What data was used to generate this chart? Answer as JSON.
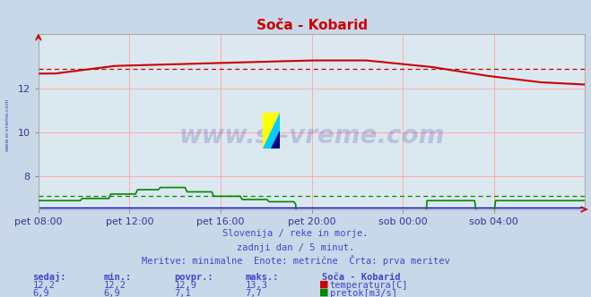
{
  "title": "Soča - Kobarid",
  "bg_color": "#c8d8e8",
  "plot_bg_color": "#dce8f0",
  "grid_color": "#ffcccc",
  "text_color": "#4444cc",
  "title_color": "#cc0000",
  "x_labels": [
    "pet 08:00",
    "pet 12:00",
    "pet 16:00",
    "pet 20:00",
    "sob 00:00",
    "sob 04:00"
  ],
  "x_ticks_norm": [
    0.0,
    0.1667,
    0.3333,
    0.5,
    0.6667,
    0.8333
  ],
  "ylim_min": 6.5,
  "ylim_max": 14.5,
  "yticks": [
    8,
    10,
    12
  ],
  "temp_color": "#cc0000",
  "flow_color": "#008800",
  "height_color": "#0000cc",
  "watermark": "www.si-vreme.com",
  "subtitle1": "Slovenija / reke in morje.",
  "subtitle2": "zadnji dan / 5 minut.",
  "subtitle3": "Meritve: minimalne  Enote: metrične  Črta: prva meritev",
  "legend_title": "Soča - Kobarid",
  "stat_headers": [
    "sedaj:",
    "min.:",
    "povpr.:",
    "maks.:"
  ],
  "temp_stats": [
    "12,2",
    "12,2",
    "12,9",
    "13,3"
  ],
  "flow_stats": [
    "6,9",
    "6,9",
    "7,1",
    "7,7"
  ],
  "temp_label": "temperatura[C]",
  "flow_label": "pretok[m3/s]",
  "avg_temp": 12.9,
  "avg_flow": 7.1,
  "n_points": 288
}
